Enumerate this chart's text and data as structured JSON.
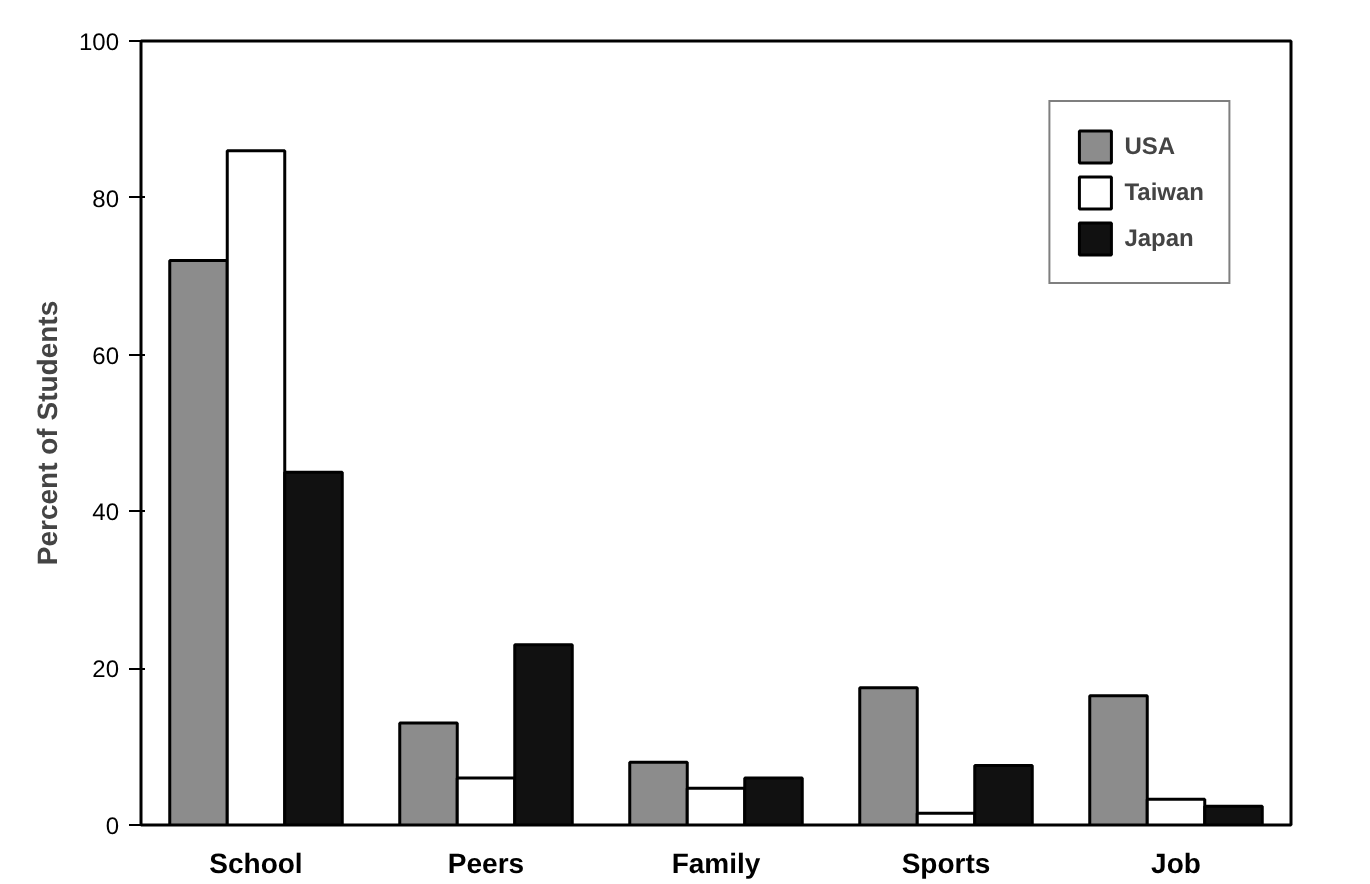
{
  "chart_data": {
    "type": "bar",
    "ylabel": "Percent of Students",
    "categories": [
      "School",
      "Peers",
      "Family",
      "Sports",
      "Job"
    ],
    "series": [
      {
        "name": "USA",
        "color": "#8c8c8c",
        "values": [
          72,
          13,
          8,
          17.5,
          16.5
        ]
      },
      {
        "name": "Taiwan",
        "color": "#ffffff",
        "values": [
          86,
          6,
          4.7,
          1.5,
          3.3
        ]
      },
      {
        "name": "Japan",
        "color": "#111111",
        "values": [
          45,
          23,
          6,
          7.6,
          2.4
        ]
      }
    ],
    "ylim": [
      0,
      100
    ],
    "yticks": [
      0,
      20,
      40,
      60,
      80,
      100
    ],
    "grid": false,
    "legend": "top right"
  }
}
